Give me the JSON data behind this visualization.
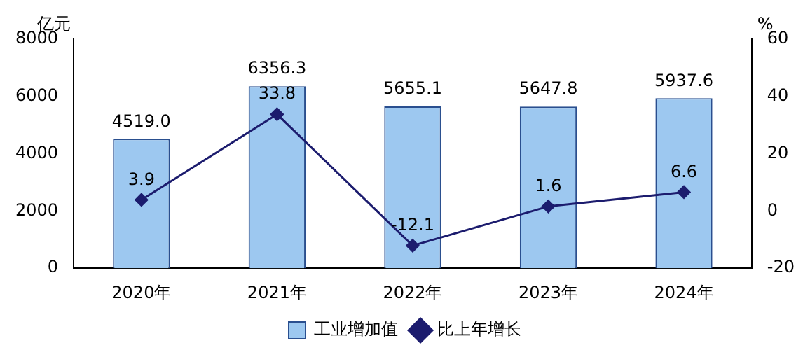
{
  "chart_data": {
    "type": "bar",
    "categories": [
      "2020年",
      "2021年",
      "2022年",
      "2023年",
      "2024年"
    ],
    "ylabel": "亿元",
    "y2label": "%",
    "ylim": [
      0,
      8000
    ],
    "yticks": [
      0,
      2000,
      4000,
      6000,
      8000
    ],
    "y2lim": [
      -20,
      60
    ],
    "y2ticks": [
      -20,
      0,
      20,
      40,
      60
    ],
    "legend": "bottom",
    "marker": "diamond",
    "series": [
      {
        "name": "工业增加值",
        "color": "#9dc8f0",
        "values": [
          4519.0,
          6356.3,
          5655.1,
          5647.8,
          5937.6
        ],
        "value_labels": [
          "4519.0",
          "6356.3",
          "5655.1",
          "5647.8",
          "5937.6"
        ]
      },
      {
        "type": "line",
        "axis": "y2",
        "name": "比上年增长",
        "color": "#1c1c6e",
        "values": [
          3.9,
          33.8,
          -12.1,
          1.6,
          6.6
        ],
        "value_labels": [
          "3.9",
          "33.8",
          "-12.1",
          "1.6",
          "6.6"
        ]
      }
    ]
  }
}
